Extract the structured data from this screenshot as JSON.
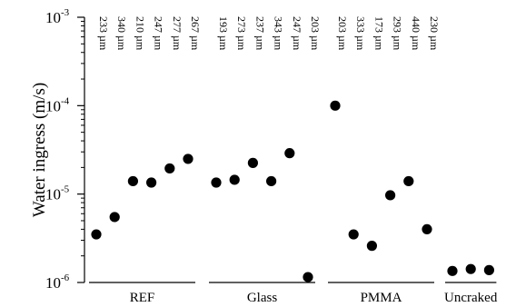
{
  "chart_data": {
    "type": "scatter",
    "ylabel": "Water ingress (m/s)",
    "yscale": "log",
    "ylim": [
      1e-06,
      0.001
    ],
    "yticks": [
      {
        "value": 1e-06,
        "base": "10",
        "exp": "-6"
      },
      {
        "value": 1e-05,
        "base": "10",
        "exp": "-5"
      },
      {
        "value": 0.0001,
        "base": "10",
        "exp": "-4"
      },
      {
        "value": 0.001,
        "base": "10",
        "exp": "-3"
      }
    ],
    "groups": [
      {
        "name": "REF",
        "crack_widths": [
          "233 µm",
          "340 µm",
          "210 µm",
          "247 µm",
          "277 µm",
          "267 µm"
        ],
        "values": [
          3.5e-06,
          5.5e-06,
          1.4e-05,
          1.35e-05,
          1.95e-05,
          2.5e-05
        ]
      },
      {
        "name": "Glass",
        "crack_widths": [
          "193 µm",
          "273 µm",
          "237 µm",
          "343 µm",
          "247 µm",
          "203 µm"
        ],
        "values": [
          1.35e-05,
          1.45e-05,
          2.25e-05,
          1.4e-05,
          2.9e-05,
          1.15e-06
        ]
      },
      {
        "name": "PMMA",
        "crack_widths": [
          "203 µm",
          "333 µm",
          "173 µm",
          "293 µm",
          "440 µm",
          "230 µm"
        ],
        "values": [
          0.0001,
          3.5e-06,
          2.6e-06,
          9.7e-06,
          1.4e-05,
          4e-06
        ]
      },
      {
        "name": "Uncraked",
        "crack_widths": [],
        "values": [
          1.35e-06,
          1.42e-06,
          1.38e-06
        ]
      }
    ]
  }
}
